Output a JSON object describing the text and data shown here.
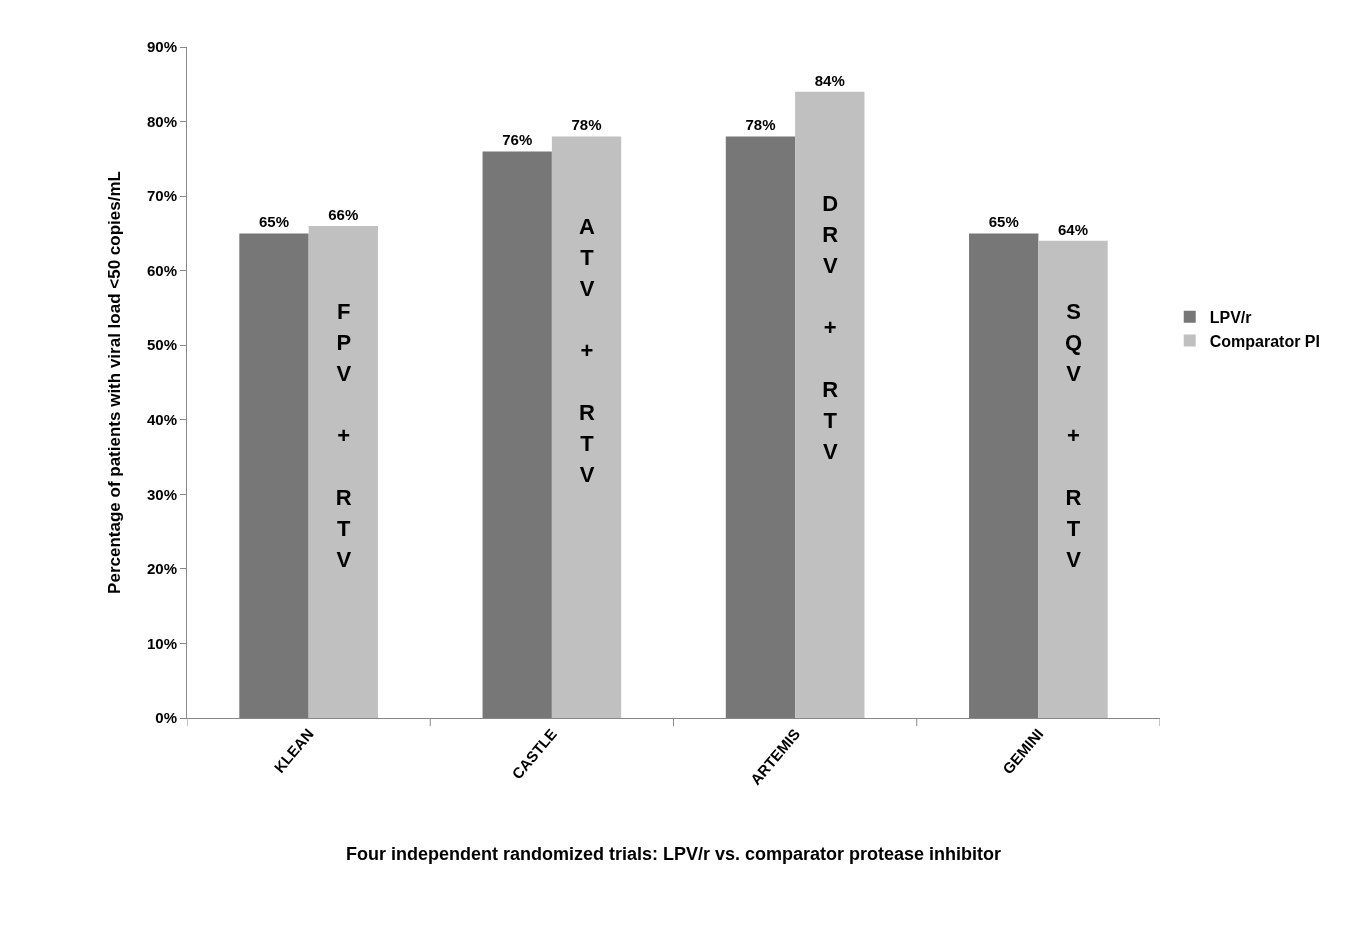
{
  "chart_data": {
    "type": "bar",
    "xlabel": "Four independent randomized trials: LPV/r vs. comparator protease inhibitor",
    "ylabel": "Percentage of patients with viral load <50 copies/mL",
    "categories": [
      "KLEAN",
      "CASTLE",
      "ARTEMIS",
      "GEMINI"
    ],
    "series": [
      {
        "name": "LPV/r",
        "color": "#777777",
        "values": [
          65,
          76,
          78,
          65
        ],
        "value_labels": [
          "65%",
          "76%",
          "78%",
          "65%"
        ]
      },
      {
        "name": "Comparator PI",
        "color": "#c0c0c0",
        "values": [
          66,
          78,
          84,
          64
        ],
        "value_labels": [
          "66%",
          "78%",
          "84%",
          "64%"
        ]
      }
    ],
    "ylim": [
      0,
      90
    ],
    "yticks": [
      {
        "value": 0,
        "label": "0%"
      },
      {
        "value": 10,
        "label": "10%"
      },
      {
        "value": 20,
        "label": "20%"
      },
      {
        "value": 30,
        "label": "30%"
      },
      {
        "value": 40,
        "label": "40%"
      },
      {
        "value": 50,
        "label": "50%"
      },
      {
        "value": 60,
        "label": "60%"
      },
      {
        "value": 70,
        "label": "70%"
      },
      {
        "value": 80,
        "label": "80%"
      },
      {
        "value": 90,
        "label": "90%"
      }
    ],
    "annotations": [
      {
        "text": "FPV + RTV",
        "x": "KLEAN",
        "y": 37.5
      },
      {
        "text": "ATV + RTV",
        "x": "CASTLE",
        "y": 49
      },
      {
        "text": "DRV + RTV",
        "x": "ARTEMIS",
        "y": 52
      },
      {
        "text": "SQV + RTV",
        "x": "GEMINI",
        "y": 37.5
      }
    ],
    "grid": false,
    "legend": "right"
  }
}
